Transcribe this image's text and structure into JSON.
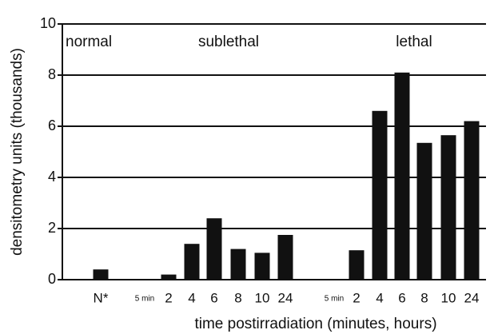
{
  "chart_data": {
    "type": "bar",
    "x_label": "time postirradiation (minutes, hours)",
    "y_label": "densitometry units (thousands)",
    "annotations": [
      "normal",
      "sublethal",
      "lethal"
    ],
    "categories": [
      "N*",
      "5 min",
      "2",
      "4",
      "6",
      "8",
      "10",
      "24",
      "5 min",
      "2",
      "4",
      "6",
      "8",
      "10",
      "24"
    ],
    "values": [
      0.4,
      0,
      0.2,
      1.4,
      2.4,
      1.2,
      1.05,
      1.75,
      0,
      1.15,
      6.6,
      8.1,
      5.35,
      5.65,
      6.2
    ],
    "color": "#111111",
    "ylim": [
      0,
      10
    ],
    "yticks": [
      0,
      2,
      4,
      6,
      8,
      10
    ],
    "grid": true
  }
}
